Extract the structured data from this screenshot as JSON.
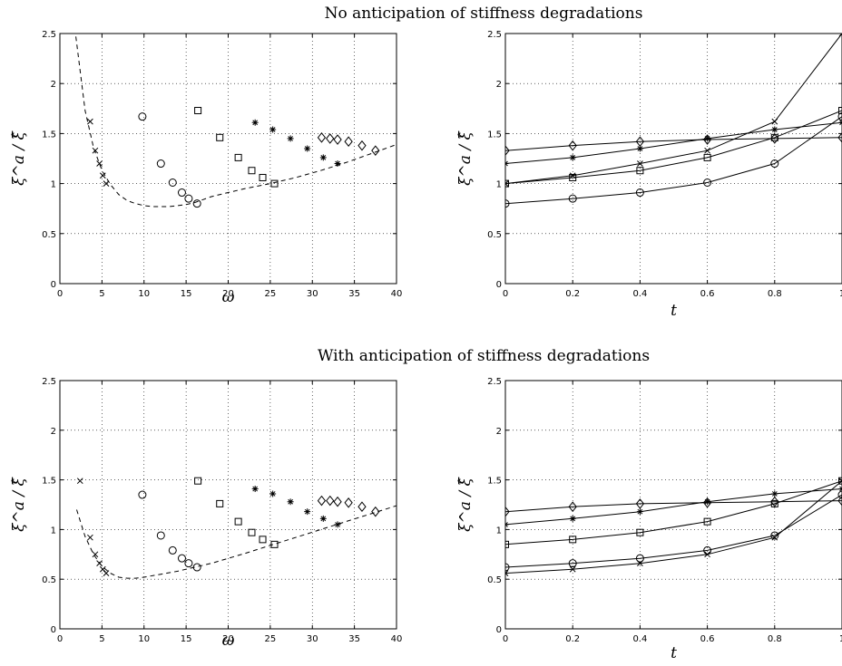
{
  "titles": {
    "top": "No anticipation of stiffness degradations",
    "bottom": "With anticipation of stiffness degradations"
  },
  "chart_data": [
    {
      "type": "scatter",
      "xlabel": "ω",
      "ylabel": "ξ^a / ξ̂",
      "xlim": [
        0,
        40
      ],
      "ylim": [
        0,
        2.5
      ],
      "xticks": [
        "0",
        "5",
        "10",
        "15",
        "20",
        "25",
        "30",
        "35",
        "40"
      ],
      "yticks": [
        "0",
        "0.5",
        "1",
        "1.5",
        "2",
        "2.5"
      ],
      "grid": true,
      "series": [
        {
          "marker": "x",
          "points": [
            [
              3.6,
              1.62
            ],
            [
              4.2,
              1.33
            ],
            [
              4.7,
              1.2
            ],
            [
              5.1,
              1.08
            ],
            [
              5.5,
              1.0
            ]
          ]
        },
        {
          "marker": "o",
          "points": [
            [
              9.8,
              1.67
            ],
            [
              12.0,
              1.2
            ],
            [
              13.4,
              1.01
            ],
            [
              14.5,
              0.91
            ],
            [
              15.3,
              0.85
            ],
            [
              16.3,
              0.8
            ]
          ]
        },
        {
          "marker": "square",
          "points": [
            [
              16.4,
              1.73
            ],
            [
              19.0,
              1.46
            ],
            [
              21.2,
              1.26
            ],
            [
              22.8,
              1.13
            ],
            [
              24.1,
              1.06
            ],
            [
              25.5,
              1.0
            ]
          ]
        },
        {
          "marker": "asterisk",
          "points": [
            [
              23.2,
              1.61
            ],
            [
              25.3,
              1.54
            ],
            [
              27.4,
              1.45
            ],
            [
              29.4,
              1.35
            ],
            [
              31.3,
              1.26
            ],
            [
              33.0,
              1.2
            ]
          ]
        },
        {
          "marker": "diamond",
          "points": [
            [
              31.1,
              1.46
            ],
            [
              32.1,
              1.45
            ],
            [
              33.0,
              1.44
            ],
            [
              34.3,
              1.42
            ],
            [
              35.9,
              1.38
            ],
            [
              37.5,
              1.33
            ]
          ]
        }
      ],
      "curve": {
        "style": "dashed",
        "points": [
          [
            1.9,
            2.47
          ],
          [
            3.0,
            1.73
          ],
          [
            4.0,
            1.36
          ],
          [
            5.0,
            1.13
          ],
          [
            6.0,
            0.99
          ],
          [
            7.0,
            0.89
          ],
          [
            8.0,
            0.83
          ],
          [
            9.0,
            0.8
          ],
          [
            10.0,
            0.78
          ],
          [
            11.0,
            0.77
          ],
          [
            12.0,
            0.77
          ],
          [
            13.0,
            0.77
          ],
          [
            14.0,
            0.78
          ],
          [
            15.0,
            0.79
          ],
          [
            16.0,
            0.81
          ],
          [
            17.0,
            0.84
          ],
          [
            18.0,
            0.87
          ],
          [
            20.0,
            0.91
          ],
          [
            22.0,
            0.95
          ],
          [
            25.0,
            1.0
          ],
          [
            28.0,
            1.06
          ],
          [
            31.0,
            1.13
          ],
          [
            34.0,
            1.21
          ],
          [
            37.0,
            1.3
          ],
          [
            40.0,
            1.39
          ]
        ]
      }
    },
    {
      "type": "line",
      "xlabel": "t",
      "ylabel": "ξ^a / ξ̂",
      "xlim": [
        0,
        1
      ],
      "ylim": [
        0,
        2.5
      ],
      "xticks": [
        "0",
        "0.2",
        "0.4",
        "0.6",
        "0.8",
        "1"
      ],
      "yticks": [
        "0",
        "0.5",
        "1",
        "1.5",
        "2",
        "2.5"
      ],
      "grid": true,
      "x": [
        0,
        0.2,
        0.4,
        0.6,
        0.8,
        1.0
      ],
      "series": [
        {
          "marker": "diamond",
          "values": [
            1.33,
            1.38,
            1.42,
            1.44,
            1.45,
            1.46
          ]
        },
        {
          "marker": "asterisk",
          "values": [
            1.2,
            1.26,
            1.35,
            1.45,
            1.54,
            1.61
          ]
        },
        {
          "marker": "x",
          "values": [
            1.0,
            1.08,
            1.2,
            1.33,
            1.62,
            2.5
          ]
        },
        {
          "marker": "square",
          "values": [
            1.0,
            1.06,
            1.13,
            1.26,
            1.46,
            1.73
          ]
        },
        {
          "marker": "o",
          "values": [
            0.8,
            0.85,
            0.91,
            1.01,
            1.2,
            1.67
          ]
        }
      ]
    },
    {
      "type": "scatter",
      "xlabel": "ω",
      "ylabel": "ξ^a / ξ̂",
      "xlim": [
        0,
        40
      ],
      "ylim": [
        0,
        2.5
      ],
      "xticks": [
        "0",
        "5",
        "10",
        "15",
        "20",
        "25",
        "30",
        "35",
        "40"
      ],
      "yticks": [
        "0",
        "0.5",
        "1",
        "1.5",
        "2",
        "2.5"
      ],
      "grid": true,
      "series": [
        {
          "marker": "x",
          "points": [
            [
              2.4,
              1.49
            ],
            [
              3.6,
              0.92
            ],
            [
              4.2,
              0.75
            ],
            [
              4.7,
              0.66
            ],
            [
              5.1,
              0.6
            ],
            [
              5.5,
              0.56
            ]
          ]
        },
        {
          "marker": "o",
          "points": [
            [
              9.8,
              1.35
            ],
            [
              12.0,
              0.94
            ],
            [
              13.4,
              0.79
            ],
            [
              14.5,
              0.71
            ],
            [
              15.3,
              0.66
            ],
            [
              16.3,
              0.62
            ]
          ]
        },
        {
          "marker": "square",
          "points": [
            [
              16.4,
              1.49
            ],
            [
              19.0,
              1.26
            ],
            [
              21.2,
              1.08
            ],
            [
              22.8,
              0.97
            ],
            [
              24.1,
              0.9
            ],
            [
              25.5,
              0.85
            ]
          ]
        },
        {
          "marker": "asterisk",
          "points": [
            [
              23.2,
              1.41
            ],
            [
              25.3,
              1.36
            ],
            [
              27.4,
              1.28
            ],
            [
              29.4,
              1.18
            ],
            [
              31.3,
              1.11
            ],
            [
              33.0,
              1.05
            ]
          ]
        },
        {
          "marker": "diamond",
          "points": [
            [
              31.1,
              1.29
            ],
            [
              32.1,
              1.29
            ],
            [
              33.0,
              1.28
            ],
            [
              34.3,
              1.27
            ],
            [
              35.9,
              1.23
            ],
            [
              37.5,
              1.18
            ]
          ]
        }
      ],
      "curve": {
        "style": "dashed",
        "points": [
          [
            2.0,
            1.2
          ],
          [
            3.0,
            0.93
          ],
          [
            4.0,
            0.75
          ],
          [
            5.0,
            0.63
          ],
          [
            6.0,
            0.56
          ],
          [
            7.0,
            0.52
          ],
          [
            8.0,
            0.51
          ],
          [
            9.0,
            0.51
          ],
          [
            10.0,
            0.52
          ],
          [
            12.0,
            0.55
          ],
          [
            14.0,
            0.58
          ],
          [
            16.0,
            0.62
          ],
          [
            18.0,
            0.66
          ],
          [
            20.0,
            0.71
          ],
          [
            22.0,
            0.76
          ],
          [
            25.0,
            0.84
          ],
          [
            28.0,
            0.92
          ],
          [
            31.0,
            1.0
          ],
          [
            34.0,
            1.08
          ],
          [
            37.0,
            1.16
          ],
          [
            40.0,
            1.24
          ]
        ]
      }
    },
    {
      "type": "line",
      "xlabel": "t",
      "ylabel": "ξ^a / ξ̂",
      "xlim": [
        0,
        1
      ],
      "ylim": [
        0,
        2.5
      ],
      "xticks": [
        "0",
        "0.2",
        "0.4",
        "0.6",
        "0.8",
        "1"
      ],
      "yticks": [
        "0",
        "0.5",
        "1",
        "1.5",
        "2",
        "2.5"
      ],
      "grid": true,
      "x": [
        0,
        0.2,
        0.4,
        0.6,
        0.8,
        1.0
      ],
      "series": [
        {
          "marker": "diamond",
          "values": [
            1.18,
            1.23,
            1.26,
            1.27,
            1.28,
            1.29
          ]
        },
        {
          "marker": "asterisk",
          "values": [
            1.05,
            1.11,
            1.18,
            1.28,
            1.36,
            1.41
          ]
        },
        {
          "marker": "square",
          "values": [
            0.85,
            0.9,
            0.97,
            1.08,
            1.26,
            1.49
          ]
        },
        {
          "marker": "o",
          "values": [
            0.62,
            0.66,
            0.71,
            0.79,
            0.94,
            1.35
          ]
        },
        {
          "marker": "x",
          "values": [
            0.56,
            0.6,
            0.66,
            0.75,
            0.92,
            1.49
          ]
        }
      ]
    }
  ]
}
